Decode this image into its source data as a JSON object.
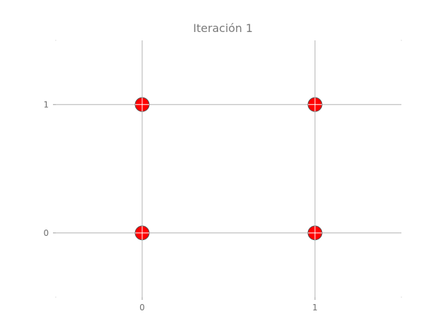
{
  "chart_data": {
    "type": "scatter",
    "title": "Iteración 1",
    "xlabel": "",
    "ylabel": "",
    "xlim": [
      -0.5,
      1.5
    ],
    "ylim": [
      -0.5,
      1.5
    ],
    "xticks": [
      0,
      1
    ],
    "yticks": [
      0,
      1
    ],
    "grid": true,
    "marker_color": "#ff0000",
    "marker_edge_color": "#555555",
    "grid_color": "#b0b0b0",
    "series": [
      {
        "points": [
          {
            "x": 0,
            "y": 0
          },
          {
            "x": 1,
            "y": 0
          },
          {
            "x": 0,
            "y": 1
          },
          {
            "x": 1,
            "y": 1
          }
        ]
      }
    ]
  }
}
